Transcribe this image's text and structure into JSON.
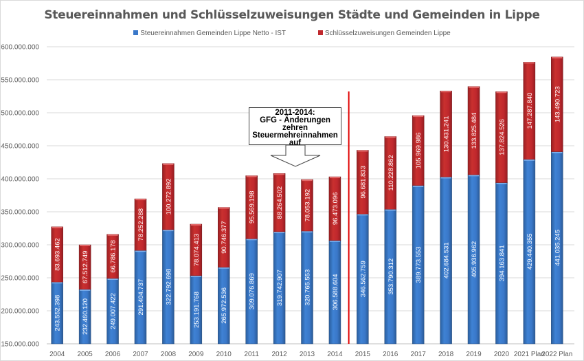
{
  "chart_data": {
    "type": "bar",
    "stacked": true,
    "title": "Steuereinnahmen und Schlüsselzuweisungen Städte und Gemeinden in Lippe",
    "xlabel": "",
    "ylabel": "",
    "ylim": [
      150000000,
      600000000
    ],
    "yticks": [
      150000000,
      200000000,
      250000000,
      300000000,
      350000000,
      400000000,
      450000000,
      500000000,
      550000000,
      600000000
    ],
    "ytick_labels": [
      "150.000.000",
      "200.000.000",
      "250.000.000",
      "300.000.000",
      "350.000.000",
      "400.000.000",
      "450.000.000",
      "500.000.000",
      "550.000.000",
      "600.000.000"
    ],
    "grid": true,
    "legend_position": "top",
    "categories": [
      "2004",
      "2005",
      "2006",
      "2007",
      "2008",
      "2009",
      "2010",
      "2011",
      "2012",
      "2013",
      "2014",
      "2015",
      "2016",
      "2017",
      "2018",
      "2019",
      "2020",
      "2021 Plan",
      "2022 Plan"
    ],
    "series": [
      {
        "name": "Steuereinnahmen Gemeinden Lippe Netto - IST",
        "color": "#3a78c9",
        "values": [
          243552398,
          232460120,
          249007422,
          291404737,
          322792698,
          253191768,
          265972536,
          309076869,
          319742907,
          320765553,
          306588604,
          346562759,
          353790312,
          389773553,
          402684531,
          405936962,
          394163841,
          429440355,
          441035245
        ],
        "labels": [
          "243.552.398",
          "232.460.120",
          "249.007.422",
          "291.404.737",
          "322.792.698",
          "253.191.768",
          "265.972.536",
          "309.076.869",
          "319.742.907",
          "320.765.553",
          "306.588.604",
          "346.562.759",
          "353.790.312",
          "389.773.553",
          "402.684.531",
          "405.936.962",
          "394.163.841",
          "429.440.355",
          "441.035.245"
        ]
      },
      {
        "name": "Schlüsselzuweisungen Gemeinden Lippe",
        "color": "#c0282d",
        "values": [
          83693462,
          67512749,
          66786178,
          78252288,
          100272892,
          78074413,
          90746377,
          95569198,
          88264502,
          78053192,
          96473096,
          96681833,
          110228862,
          105969986,
          130431241,
          133825484,
          137824526,
          147287840,
          143490723
        ],
        "labels": [
          "83.693.462",
          "67.512.749",
          "66.786.178",
          "78.252.288",
          "100.272.892",
          "78.074.413",
          "90.746.377",
          "95.569.198",
          "88.264.502",
          "78.053.192",
          "96.473.096",
          "96.681.833",
          "110.228.862",
          "105.969.986",
          "130.431.241",
          "133.825.484",
          "137.824.526",
          "147.287.840",
          "143.490.723"
        ]
      }
    ],
    "annotations": [
      {
        "text_lines": [
          "2011-2014:",
          "GFG - Änderungen",
          "zehren",
          "Steuermehreinnahmen",
          "auf"
        ],
        "type": "down-arrow-callout",
        "applies_to": [
          "2011",
          "2012",
          "2013",
          "2014"
        ]
      },
      {
        "type": "vertical-line",
        "between": [
          "2014",
          "2015"
        ],
        "color": "#e00000"
      }
    ]
  }
}
